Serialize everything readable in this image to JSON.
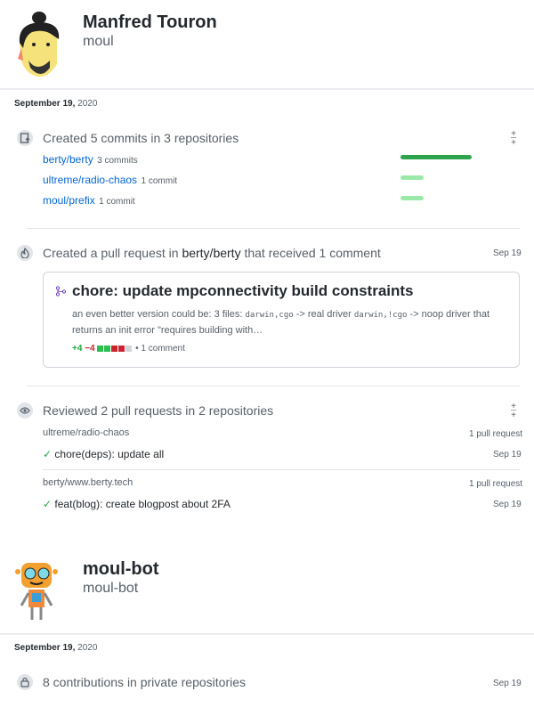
{
  "user1": {
    "name": "Manfred Touron",
    "login": "moul"
  },
  "user2": {
    "name": "moul-bot",
    "login": "moul-bot"
  },
  "section1": {
    "date": "September 19,",
    "year": "2020",
    "commits": {
      "title": "Created 5 commits in 3 repositories",
      "repos": [
        {
          "repo": "berty/berty",
          "count": "3 commits",
          "share": 1.0
        },
        {
          "repo": "ultreme/radio-chaos",
          "count": "1 commit",
          "share": 0.33
        },
        {
          "repo": "moul/prefix",
          "count": "1 commit",
          "share": 0.33
        }
      ]
    },
    "pr": {
      "title_pre": "Created a pull request in",
      "repo": "berty/berty",
      "title_post": "that received 1 comment",
      "date": "Sep 19",
      "card_title": "chore: update mpconnectivity build constraints",
      "body_1": "an even better version could be: 3 files:",
      "code_1": "darwin,cgo",
      "body_2": "-> real driver",
      "code_2": "darwin,!cgo",
      "body_3": "-> noop driver that returns an init error \"requires building with…",
      "additions": "+4",
      "deletions": "−4",
      "comments": "• 1 comment"
    },
    "reviews": {
      "title": "Reviewed 2 pull requests in 2 repositories",
      "groups": [
        {
          "repo": "ultreme/radio-chaos",
          "count": "1 pull request",
          "item": "chore(deps): update all",
          "date": "Sep 19"
        },
        {
          "repo": "berty/www.berty.tech",
          "count": "1 pull request",
          "item": "feat(blog): create blogpost about 2FA",
          "date": "Sep 19"
        }
      ]
    }
  },
  "section2": {
    "date": "September 19,",
    "year": "2020",
    "private": {
      "title": "8 contributions in private repositories",
      "date": "Sep 19"
    }
  },
  "colors": {
    "link": "#0366d6",
    "green_dark": "#2ea44f",
    "green_light": "#9be9a8",
    "deletions": "#cb2431",
    "pr_icon": "#6f42c1"
  }
}
